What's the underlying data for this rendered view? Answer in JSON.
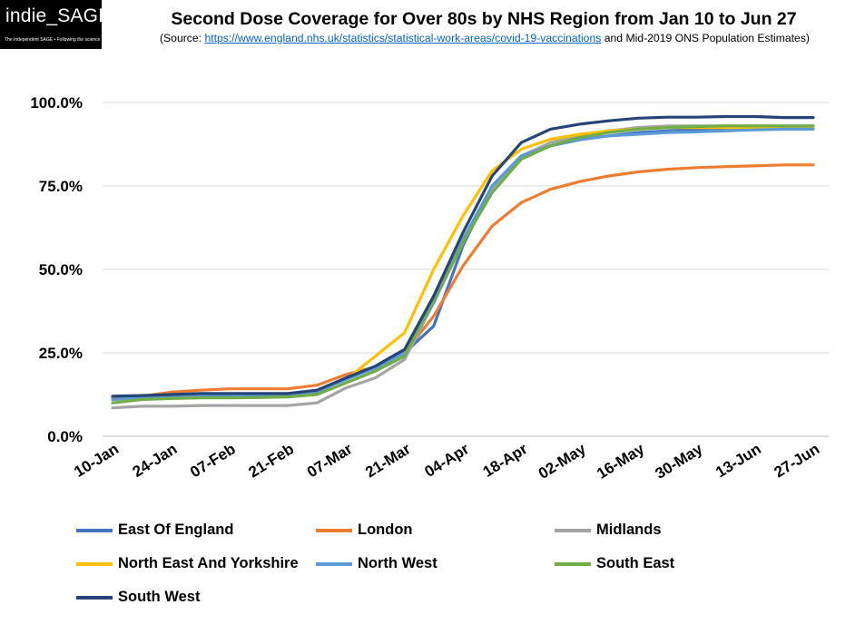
{
  "logo": {
    "text": "indie_SAGE",
    "tagline": "The Independent SAGE • Following the science"
  },
  "header": {
    "title": "Second Dose Coverage for Over 80s by NHS  Region from Jan 10 to Jun 27",
    "source_prefix": "(Source: ",
    "source_link": "https://www.england.nhs.uk/statistics/statistical-work-areas/covid-19-vaccinations",
    "source_suffix": " and Mid-2019 ONS Population Estimates)"
  },
  "chart_data": {
    "type": "line",
    "x_tick_labels": [
      "10-Jan",
      "24-Jan",
      "07-Feb",
      "21-Feb",
      "07-Mar",
      "21-Mar",
      "04-Apr",
      "18-Apr",
      "02-May",
      "16-May",
      "30-May",
      "13-Jun",
      "27-Jun"
    ],
    "y_tick_labels": [
      "0.0%",
      "25.0%",
      "50.0%",
      "75.0%",
      "100.0%"
    ],
    "ylim": [
      0,
      100
    ],
    "grid": "horizontal",
    "legend_position": "bottom",
    "colors": {
      "east_of_england": "#4472c4",
      "london": "#ed7d31",
      "midlands": "#a5a5a5",
      "north_east_yorkshire": "#ffc000",
      "north_west": "#5b9bd5",
      "south_east": "#70ad47",
      "south_west": "#264478"
    },
    "series": [
      {
        "name": "East Of England",
        "color": "#4472c4",
        "values": [
          11.5,
          12,
          12.3,
          12.5,
          12.5,
          12.5,
          12.7,
          13,
          17.5,
          20.5,
          25,
          33,
          57,
          75,
          84,
          87,
          89,
          90,
          91,
          91.5,
          92,
          92,
          92.5,
          92.5,
          92.5
        ]
      },
      {
        "name": "London",
        "color": "#ed7d31",
        "values": [
          11.5,
          12,
          13.2,
          13.8,
          14.2,
          14.2,
          14.2,
          15.3,
          18.5,
          20.8,
          25,
          36,
          51,
          63,
          70,
          74,
          76.3,
          78,
          79.2,
          80,
          80.5,
          80.8,
          81,
          81.3,
          81.3
        ]
      },
      {
        "name": "Midlands",
        "color": "#a5a5a5",
        "values": [
          8.5,
          9,
          9,
          9.2,
          9.2,
          9.2,
          9.2,
          10,
          14.5,
          17.5,
          23,
          40,
          58,
          74,
          84,
          88,
          90,
          91.5,
          92.5,
          93,
          93,
          93,
          93,
          93,
          93
        ]
      },
      {
        "name": "North East And Yorkshire",
        "color": "#ffc000",
        "values": [
          11,
          11.5,
          11.7,
          11.8,
          11.8,
          12,
          12.2,
          13.5,
          17,
          24,
          31,
          50,
          66,
          79.5,
          86,
          89,
          90.5,
          91.5,
          92,
          92.5,
          92.5,
          92.5,
          92.5,
          92.5,
          92.5
        ]
      },
      {
        "name": "North West",
        "color": "#5b9bd5",
        "values": [
          11,
          11.7,
          12,
          12.2,
          12.2,
          12.4,
          12.4,
          13.5,
          17,
          20.5,
          25,
          40,
          59,
          75,
          84,
          87,
          88.8,
          90,
          90.5,
          91,
          91.2,
          91.5,
          91.8,
          92,
          92
        ]
      },
      {
        "name": "South East",
        "color": "#70ad47",
        "values": [
          10,
          11,
          11.3,
          11.5,
          11.5,
          11.6,
          11.8,
          12.5,
          16,
          19.5,
          24,
          41,
          58,
          73,
          83,
          87,
          89.5,
          91,
          92,
          92.5,
          92.8,
          93,
          93,
          93,
          93
        ]
      },
      {
        "name": "South West",
        "color": "#264478",
        "values": [
          12,
          12.2,
          12.5,
          12.8,
          12.8,
          12.8,
          12.8,
          13.8,
          17.5,
          21,
          26,
          42,
          61,
          78,
          88,
          92,
          93.5,
          94.5,
          95.3,
          95.6,
          95.6,
          95.8,
          95.8,
          95.5,
          95.5
        ]
      }
    ]
  }
}
